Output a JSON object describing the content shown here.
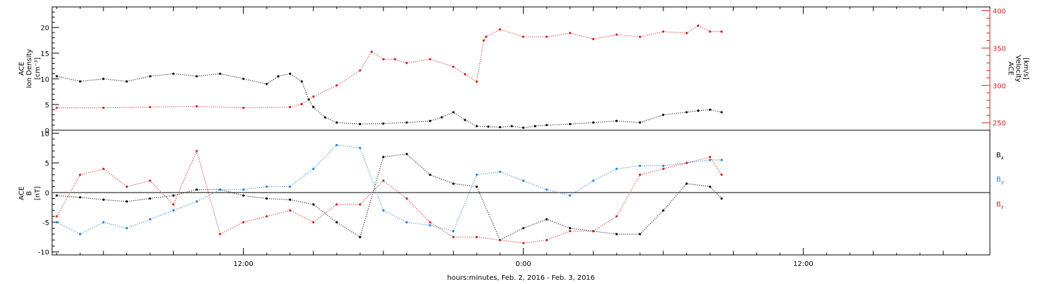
{
  "chart_data": [
    {
      "type": "scatter",
      "panel": "plasma",
      "xlabel": "hours:minutes, Feb.  2, 2016 - Feb.  3, 2016",
      "x_unit": "hours relative to 2016-02-03 00:00 UT",
      "xlim": [
        -20.2,
        20.0
      ],
      "x_ticks": [
        {
          "x": -12,
          "label": "12:00"
        },
        {
          "x": 0,
          "label": "0:00"
        },
        {
          "x": 12,
          "label": "12:00"
        }
      ],
      "y_axes": {
        "left": {
          "label_lines": [
            "ACE",
            "Ion Density",
            "[cm⁻³]"
          ],
          "ylim": [
            0,
            24
          ],
          "ticks": [
            0,
            5,
            10,
            15,
            20
          ],
          "color": "#000000"
        },
        "right": {
          "label_lines": [
            "ACE",
            "Velocity",
            "[km/s]"
          ],
          "ylim": [
            240,
            405
          ],
          "ticks": [
            250,
            300,
            350,
            400
          ],
          "color": "#d61f1f"
        }
      },
      "series": [
        {
          "axis": "left",
          "color": "#000000",
          "x": [
            -20.0,
            -19.0,
            -18.0,
            -17.0,
            -16.0,
            -15.0,
            -14.0,
            -13.0,
            -12.0,
            -11.0,
            -10.5,
            -10.0,
            -9.5,
            -9.2,
            -9.0,
            -8.5,
            -8.0,
            -7.0,
            -6.0,
            -5.0,
            -4.0,
            -3.5,
            -3.0,
            -2.5,
            -2.0,
            -1.5,
            -1.0,
            -0.5,
            0.0,
            0.5,
            1.0,
            2.0,
            3.0,
            4.0,
            5.0,
            6.0,
            7.0,
            7.5,
            8.0,
            8.5
          ],
          "y": [
            10.5,
            9.5,
            10.0,
            9.5,
            10.5,
            11.0,
            10.5,
            11.0,
            10.0,
            9.0,
            10.5,
            11.0,
            9.5,
            6.0,
            4.5,
            2.5,
            1.5,
            1.2,
            1.3,
            1.5,
            1.8,
            2.5,
            3.5,
            2.0,
            0.8,
            0.7,
            0.6,
            0.8,
            0.5,
            0.8,
            1.0,
            1.2,
            1.5,
            1.8,
            1.5,
            3.0,
            3.5,
            3.8,
            4.0,
            3.5
          ]
        },
        {
          "axis": "right",
          "color": "#d61f1f",
          "x": [
            -20.0,
            -18.0,
            -16.0,
            -14.0,
            -12.0,
            -10.0,
            -9.5,
            -9.0,
            -8.0,
            -7.0,
            -6.5,
            -6.0,
            -5.5,
            -5.0,
            -4.0,
            -3.0,
            -2.5,
            -2.0,
            -1.7,
            -1.6,
            -1.0,
            0.0,
            1.0,
            2.0,
            3.0,
            4.0,
            5.0,
            6.0,
            7.0,
            7.5,
            8.0,
            8.5
          ],
          "y": [
            270,
            270,
            271,
            272,
            270,
            271,
            275,
            285,
            300,
            320,
            345,
            335,
            335,
            330,
            335,
            325,
            315,
            305,
            360,
            365,
            375,
            365,
            365,
            370,
            362,
            368,
            365,
            372,
            370,
            380,
            372,
            372
          ]
        }
      ]
    },
    {
      "type": "scatter",
      "panel": "magnetic-field",
      "xlim": [
        -20.2,
        20.0
      ],
      "y_axis": {
        "label_lines": [
          "ACE",
          "B",
          "[nT]"
        ],
        "ylim": [
          -10.5,
          10.5
        ],
        "ticks": [
          -10,
          -5,
          0,
          5,
          10
        ]
      },
      "zero_line": true,
      "series": [
        {
          "name": "Bx",
          "color": "#000000",
          "x": [
            -20.0,
            -19.0,
            -18.0,
            -17.0,
            -16.0,
            -15.0,
            -14.0,
            -13.0,
            -12.0,
            -11.0,
            -10.0,
            -9.0,
            -8.0,
            -7.0,
            -6.0,
            -5.0,
            -4.0,
            -3.0,
            -2.0,
            -1.0,
            0.0,
            1.0,
            2.0,
            3.0,
            4.0,
            5.0,
            6.0,
            7.0,
            8.0,
            8.5
          ],
          "y": [
            -0.5,
            -0.8,
            -1.2,
            -1.5,
            -1.0,
            -0.5,
            0.5,
            0.5,
            -0.5,
            -1.0,
            -1.2,
            -2.0,
            -5.0,
            -7.5,
            6.0,
            6.5,
            3.0,
            1.5,
            1.0,
            -8.0,
            -6.0,
            -4.5,
            -6.0,
            -6.5,
            -7.0,
            -7.0,
            -3.0,
            1.5,
            1.0,
            -1.0
          ]
        },
        {
          "name": "By",
          "color": "#1f7fd6",
          "x": [
            -20.0,
            -19.0,
            -18.0,
            -17.0,
            -16.0,
            -15.0,
            -14.0,
            -13.0,
            -12.0,
            -11.0,
            -10.0,
            -9.0,
            -8.0,
            -7.0,
            -6.0,
            -5.0,
            -4.0,
            -3.0,
            -2.0,
            -1.0,
            0.0,
            1.0,
            2.0,
            3.0,
            4.0,
            5.0,
            6.0,
            7.0,
            8.0,
            8.5
          ],
          "y": [
            -5.0,
            -7.0,
            -5.0,
            -6.0,
            -4.5,
            -3.0,
            -1.5,
            0.5,
            0.5,
            1.0,
            1.0,
            4.0,
            8.0,
            7.5,
            -3.0,
            -5.0,
            -5.5,
            -6.5,
            3.0,
            3.5,
            2.0,
            0.5,
            -0.5,
            2.0,
            4.0,
            4.5,
            4.5,
            5.0,
            5.5,
            5.5
          ]
        },
        {
          "name": "Bz",
          "color": "#d61f1f",
          "x": [
            -20.0,
            -19.0,
            -18.0,
            -17.0,
            -16.0,
            -15.0,
            -14.0,
            -13.0,
            -12.0,
            -11.0,
            -10.0,
            -9.0,
            -8.0,
            -7.0,
            -6.0,
            -5.0,
            -4.0,
            -3.0,
            -2.0,
            -1.0,
            0.0,
            1.0,
            2.0,
            3.0,
            4.0,
            5.0,
            6.0,
            7.0,
            8.0,
            8.5
          ],
          "y": [
            -4.0,
            3.0,
            4.0,
            1.0,
            2.0,
            -2.0,
            7.0,
            -7.0,
            -5.0,
            -4.0,
            -3.0,
            -5.0,
            -2.0,
            -2.0,
            2.0,
            -1.0,
            -5.0,
            -7.5,
            -7.5,
            -8.0,
            -8.5,
            -8.0,
            -6.5,
            -6.5,
            -4.0,
            3.0,
            4.0,
            5.0,
            6.0,
            3.0
          ]
        }
      ],
      "legend": {
        "placement": "right",
        "entries": [
          "Bx",
          "By",
          "Bz"
        ]
      }
    }
  ]
}
